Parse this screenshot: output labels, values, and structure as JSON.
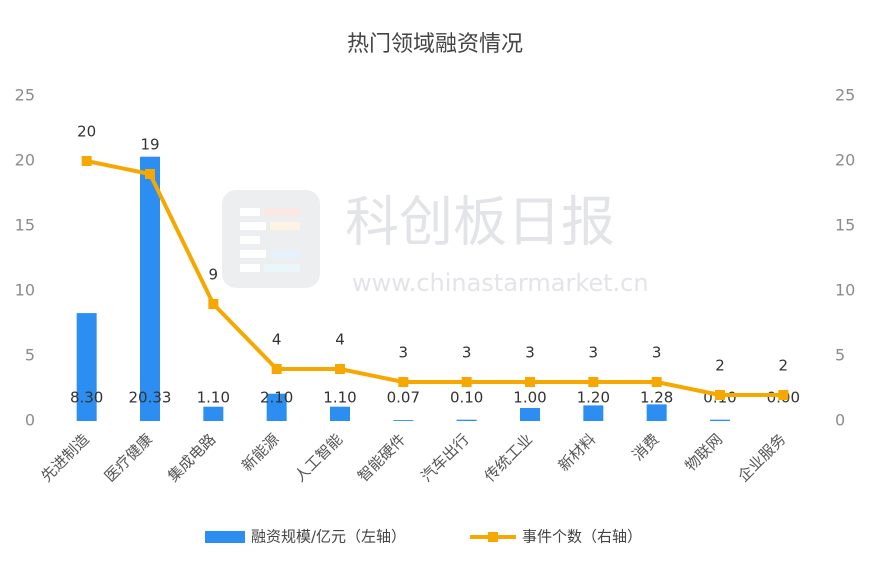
{
  "chart_data": {
    "type": "bar-line",
    "title": "热门领域融资情况",
    "watermark": [
      "科创板日报",
      "www.chinastarmarket.cn"
    ],
    "categories": [
      "先进制造",
      "医疗健康",
      "集成电路",
      "新能源",
      "人工智能",
      "智能硬件",
      "汽车出行",
      "传统工业",
      "新材料",
      "消费",
      "物联网",
      "企业服务"
    ],
    "series": [
      {
        "name": "融资规模/亿元（左轴）",
        "type": "bar",
        "color": "#2b8ef0",
        "values": [
          8.3,
          20.33,
          1.1,
          2.1,
          1.1,
          0.07,
          0.1,
          1,
          1.2,
          1.28,
          0.1,
          0
        ],
        "value_labels": [
          "8.30",
          "20.33",
          "1.10",
          "2.10",
          "1.10",
          "0.07",
          "0.10",
          "1.00",
          "1.20",
          "1.28",
          "0.10",
          "0.00"
        ]
      },
      {
        "name": "事件个数（右轴）",
        "type": "line",
        "axis": "y2",
        "color": "#f7a800",
        "values": [
          20,
          19,
          9,
          4,
          4,
          3,
          3,
          3,
          3,
          3,
          2,
          2
        ]
      }
    ],
    "ylim": [
      0,
      25
    ],
    "yticks": [
      0,
      5,
      10,
      15,
      20,
      25
    ],
    "y2lim": [
      0,
      25
    ],
    "y2ticks": [
      0,
      5,
      10,
      15,
      20,
      25
    ],
    "grid": false
  }
}
